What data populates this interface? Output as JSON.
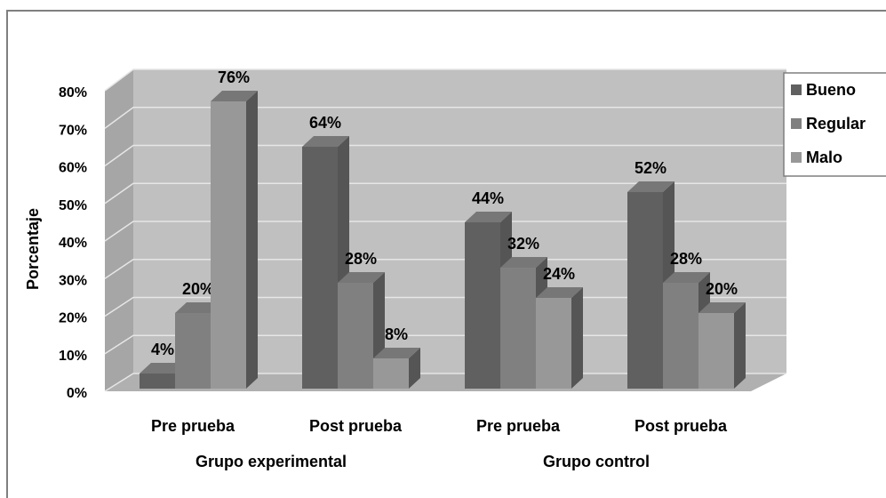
{
  "chart_data": {
    "type": "bar3d",
    "y_label": "Porcentaje",
    "categories": [
      "Pre prueba",
      "Post prueba",
      "Pre prueba",
      "Post prueba"
    ],
    "groups": [
      "Grupo experimental",
      "Grupo control"
    ],
    "series": [
      {
        "name": "Bueno",
        "color": "#606060",
        "values": [
          4,
          64,
          44,
          52
        ],
        "value_labels": [
          "4%",
          "64%",
          "44%",
          "52%"
        ]
      },
      {
        "name": "Regular",
        "color": "#808080",
        "values": [
          20,
          28,
          32,
          28
        ],
        "value_labels": [
          "20%",
          "28%",
          "32%",
          "28%"
        ]
      },
      {
        "name": "Malo",
        "color": "#989898",
        "values": [
          76,
          8,
          24,
          20
        ],
        "value_labels": [
          "76%",
          "8%",
          "24%",
          "20%"
        ]
      }
    ],
    "ylim": [
      0,
      80
    ],
    "yticks": [
      {
        "value": 0,
        "label": "0%"
      },
      {
        "value": 10,
        "label": "10%"
      },
      {
        "value": 20,
        "label": "20%"
      },
      {
        "value": 30,
        "label": "30%"
      },
      {
        "value": 40,
        "label": "40%"
      },
      {
        "value": 50,
        "label": "50%"
      },
      {
        "value": 60,
        "label": "60%"
      },
      {
        "value": 70,
        "label": "70%"
      },
      {
        "value": 80,
        "label": "80%"
      }
    ],
    "grid": true,
    "legend": "right"
  }
}
